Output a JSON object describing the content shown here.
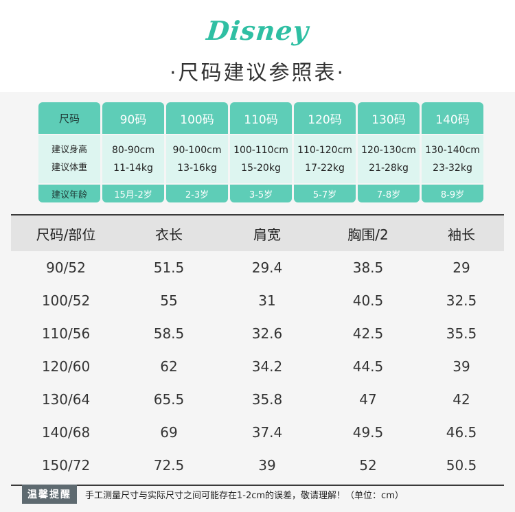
{
  "brand": {
    "logo_text": "Disney",
    "color": "#2fbfa3"
  },
  "title": "·尺码建议参照表·",
  "size_cards": {
    "row_labels": {
      "size": "尺码",
      "height": "建议身高",
      "weight": "建议体重",
      "age": "建议年龄"
    },
    "sizes": [
      {
        "size": "90码",
        "height": "80-90cm",
        "weight": "11-14kg",
        "age": "15月-2岁"
      },
      {
        "size": "100码",
        "height": "90-100cm",
        "weight": "13-16kg",
        "age": "2-3岁"
      },
      {
        "size": "110码",
        "height": "100-110cm",
        "weight": "15-20kg",
        "age": "3-5岁"
      },
      {
        "size": "120码",
        "height": "110-120cm",
        "weight": "17-22kg",
        "age": "5-7岁"
      },
      {
        "size": "130码",
        "height": "120-130cm",
        "weight": "21-28kg",
        "age": "7-8岁"
      },
      {
        "size": "140码",
        "height": "130-140cm",
        "weight": "23-32kg",
        "age": "8-9岁"
      }
    ],
    "accent": "#5ecdb7",
    "light": "#ddf5f0"
  },
  "measure_table": {
    "headers": [
      "尺码/部位",
      "衣长",
      "肩宽",
      "胸围/2",
      "袖长"
    ],
    "rows": [
      [
        "90/52",
        "51.5",
        "29.4",
        "38.5",
        "29"
      ],
      [
        "100/52",
        "55",
        "31",
        "40.5",
        "32.5"
      ],
      [
        "110/56",
        "58.5",
        "32.6",
        "42.5",
        "35.5"
      ],
      [
        "120/60",
        "62",
        "34.2",
        "44.5",
        "39"
      ],
      [
        "130/64",
        "65.5",
        "35.8",
        "47",
        "42"
      ],
      [
        "140/68",
        "69",
        "37.4",
        "49.5",
        "46.5"
      ],
      [
        "150/72",
        "72.5",
        "39",
        "52",
        "50.5"
      ]
    ]
  },
  "footer": {
    "badge": "温馨提醒",
    "note": "手工测量尺寸与实际尺寸之间可能存在1-2cm的误差，敬请理解！（单位：cm）"
  }
}
